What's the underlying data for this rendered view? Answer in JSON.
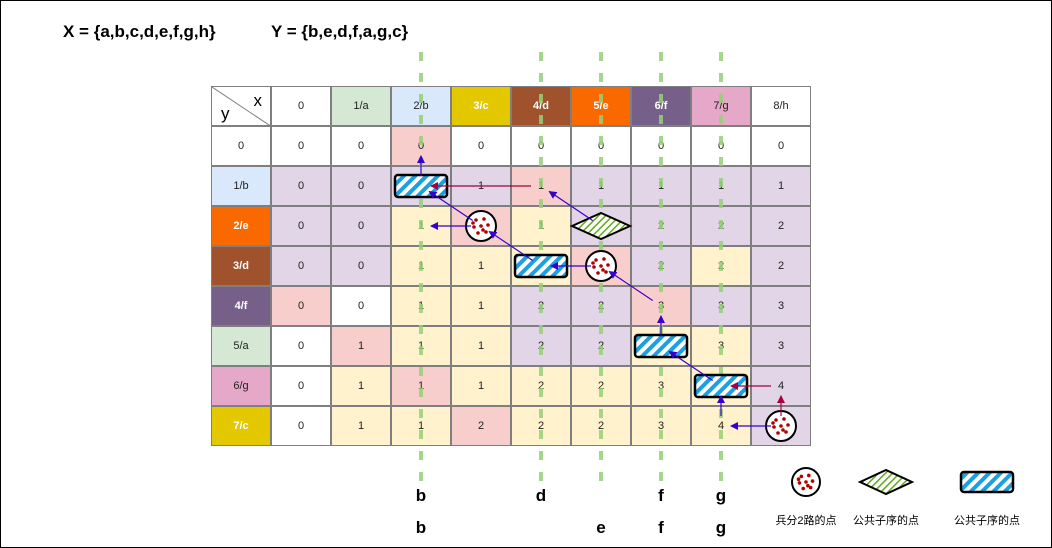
{
  "header": {
    "seq_x": "X = {a,b,c,d,e,f,g,h}",
    "seq_y": "Y = {b,e,d,f,a,g,c}"
  },
  "table": {
    "corner_x": "x",
    "corner_y": "y",
    "col_headers": [
      "0",
      "1/a",
      "2/b",
      "3/c",
      "4/d",
      "5/e",
      "6/f",
      "7/g",
      "8/h"
    ],
    "row_headers": [
      "0",
      "1/b",
      "2/e",
      "3/d",
      "4/f",
      "5/a",
      "6/g",
      "7/c"
    ],
    "col_header_colors": [
      "#ffffff",
      "#d5e8d4",
      "#dae8fc",
      "#e3c800",
      "#a0522d",
      "#fa6800",
      "#76608a",
      "#e6a8c8",
      "#ffffff"
    ],
    "row_header_colors": [
      "#ffffff",
      "#dae8fc",
      "#fa6800",
      "#a0522d",
      "#76608a",
      "#d5e8d4",
      "#e6a8c8",
      "#e3c800"
    ],
    "values": [
      [
        "0",
        "0",
        "0",
        "0",
        "0",
        "0",
        "0",
        "0",
        "0"
      ],
      [
        "0",
        "0",
        "1",
        "1",
        "1",
        "1",
        "1",
        "1",
        "1"
      ],
      [
        "0",
        "0",
        "1",
        "1",
        "1",
        "2",
        "2",
        "2",
        "2"
      ],
      [
        "0",
        "0",
        "1",
        "1",
        "2",
        "2",
        "2",
        "2",
        "2"
      ],
      [
        "0",
        "0",
        "1",
        "1",
        "2",
        "2",
        "3",
        "3",
        "3"
      ],
      [
        "0",
        "1",
        "1",
        "1",
        "2",
        "2",
        "3",
        "3",
        "3"
      ],
      [
        "0",
        "1",
        "1",
        "1",
        "2",
        "2",
        "3",
        "4",
        "4"
      ],
      [
        "0",
        "1",
        "1",
        "2",
        "2",
        "2",
        "3",
        "4",
        "4"
      ]
    ],
    "cell_colors": [
      [
        "#ffffff",
        "#ffffff",
        "#f8cecc",
        "#ffffff",
        "#ffffff",
        "#ffffff",
        "#ffffff",
        "#ffffff",
        "#ffffff"
      ],
      [
        "#e1d5e7",
        "#e1d5e7",
        "#e1d5e7",
        "#e1d5e7",
        "#f8cecc",
        "#e1d5e7",
        "#e1d5e7",
        "#e1d5e7",
        "#e1d5e7"
      ],
      [
        "#e1d5e7",
        "#e1d5e7",
        "#fff2cc",
        "#f8cecc",
        "#fff2cc",
        "#e1d5e7",
        "#e1d5e7",
        "#e1d5e7",
        "#e1d5e7"
      ],
      [
        "#e1d5e7",
        "#e1d5e7",
        "#fff2cc",
        "#fff2cc",
        "#fff2cc",
        "#f8cecc",
        "#e1d5e7",
        "#fff2cc",
        "#e1d5e7"
      ],
      [
        "#f8cecc",
        "#ffffff",
        "#fff2cc",
        "#fff2cc",
        "#e1d5e7",
        "#e1d5e7",
        "#f8cecc",
        "#e1d5e7",
        "#e1d5e7"
      ],
      [
        "#ffffff",
        "#f8cecc",
        "#fff2cc",
        "#fff2cc",
        "#e1d5e7",
        "#e1d5e7",
        "#fff2cc",
        "#fff2cc",
        "#e1d5e7"
      ],
      [
        "#ffffff",
        "#fff2cc",
        "#f8cecc",
        "#fff2cc",
        "#fff2cc",
        "#fff2cc",
        "#fff2cc",
        "#fff2cc",
        "#e1d5e7"
      ],
      [
        "#ffffff",
        "#fff2cc",
        "#fff2cc",
        "#f8cecc",
        "#fff2cc",
        "#fff2cc",
        "#fff2cc",
        "#fff2cc",
        "#e1d5e7"
      ]
    ]
  },
  "markers": {
    "dotted_circle": [
      [
        2,
        3
      ],
      [
        3,
        5
      ],
      [
        7,
        8
      ]
    ],
    "diamond": [
      [
        2,
        5
      ]
    ],
    "striped_rect": [
      [
        1,
        2
      ],
      [
        3,
        4
      ],
      [
        5,
        6
      ],
      [
        6,
        7
      ]
    ]
  },
  "path_arrows": [
    {
      "from": [
        1,
        4
      ],
      "to": [
        1,
        2
      ],
      "color": "#a50040"
    },
    {
      "from": [
        1,
        2
      ],
      "to": [
        0,
        2
      ],
      "color": "#3700cc"
    },
    {
      "from": [
        2,
        3
      ],
      "to": [
        1,
        2
      ],
      "color": "#3700cc"
    },
    {
      "from": [
        2,
        3
      ],
      "to": [
        2,
        2
      ],
      "color": "#3700cc"
    },
    {
      "from": [
        3,
        4
      ],
      "to": [
        2,
        3
      ],
      "color": "#3700cc"
    },
    {
      "from": [
        3,
        5
      ],
      "to": [
        3,
        4
      ],
      "color": "#3700cc"
    },
    {
      "from": [
        2,
        5
      ],
      "to": [
        1,
        4
      ],
      "color": "#3700cc"
    },
    {
      "from": [
        4,
        6
      ],
      "to": [
        3,
        5
      ],
      "color": "#3700cc"
    },
    {
      "from": [
        5,
        6
      ],
      "to": [
        4,
        6
      ],
      "color": "#3700cc"
    },
    {
      "from": [
        6,
        7
      ],
      "to": [
        5,
        6
      ],
      "color": "#3700cc"
    },
    {
      "from": [
        6,
        8
      ],
      "to": [
        6,
        7
      ],
      "color": "#a50040"
    },
    {
      "from": [
        7,
        8
      ],
      "to": [
        6,
        8
      ],
      "color": "#a50040"
    },
    {
      "from": [
        7,
        8
      ],
      "to": [
        7,
        7
      ],
      "color": "#3700cc"
    },
    {
      "from": [
        7,
        7
      ],
      "to": [
        6,
        7
      ],
      "color": "#3700cc"
    }
  ],
  "guide_columns": [
    2,
    4,
    5,
    6,
    7
  ],
  "guide_color": "#97d077",
  "bottom_row1": [
    {
      "col": 2,
      "text": "b"
    },
    {
      "col": 4,
      "text": "d"
    },
    {
      "col": 6,
      "text": "f"
    },
    {
      "col": 7,
      "text": "g"
    }
  ],
  "bottom_row2": [
    {
      "col": 2,
      "text": "b"
    },
    {
      "col": 5,
      "text": "e"
    },
    {
      "col": 6,
      "text": "f"
    },
    {
      "col": 7,
      "text": "g"
    }
  ],
  "legend": [
    {
      "marker": "dotted_circle",
      "label": "兵分2路的点"
    },
    {
      "marker": "diamond",
      "label": "公共子序的点"
    },
    {
      "marker": "striped_rect",
      "label": "公共子序的点"
    }
  ],
  "colors": {
    "circle_dot": "#b20000",
    "diamond_fill": "#60a917",
    "stripe_blue": "#1ba1e2",
    "grid_border": "#7f7f7f"
  }
}
